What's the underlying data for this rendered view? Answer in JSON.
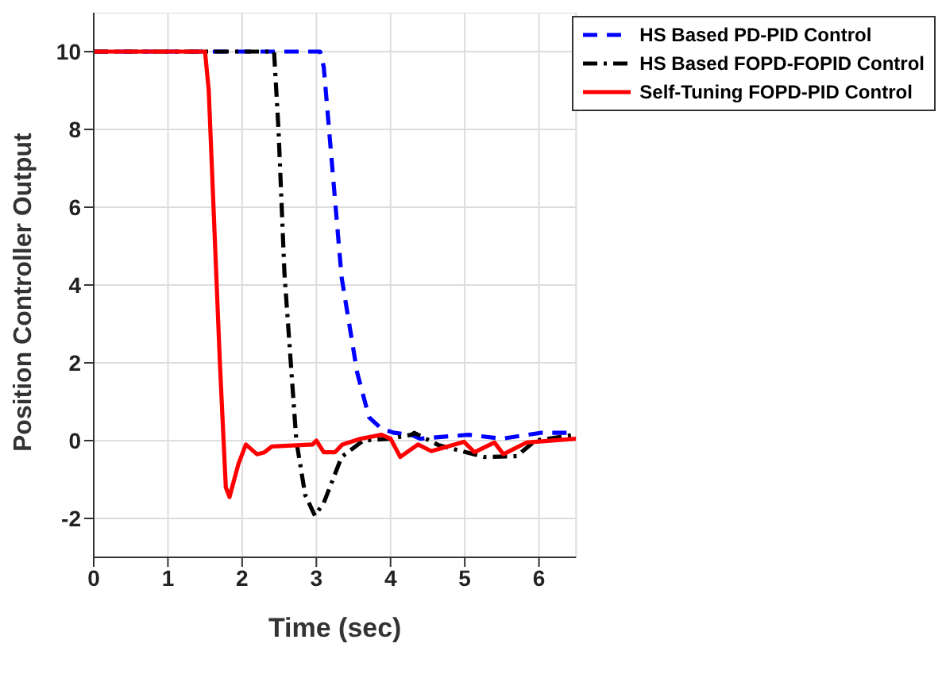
{
  "chart_data": {
    "type": "line",
    "xlabel": "Time (sec)",
    "ylabel": "Position Controller Output",
    "xlim": [
      0,
      6.5
    ],
    "xticks": [
      0,
      1,
      2,
      3,
      4,
      5,
      6
    ],
    "ylim": [
      -3,
      11
    ],
    "yticks": [
      -2,
      0,
      2,
      4,
      6,
      8,
      10
    ],
    "grid": true,
    "legend": "top right",
    "marker": "none",
    "series": [
      {
        "name": "HS Based PD-PID Control",
        "color": "#0000ff",
        "line_style": "dashed",
        "x": [
          0,
          3.05,
          3.1,
          3.34,
          3.55,
          3.71,
          3.88,
          4.05,
          4.28,
          4.4,
          5.05,
          5.5,
          6.02,
          6.5
        ],
        "values": [
          10,
          10,
          9.6,
          4.2,
          1.75,
          0.6,
          0.3,
          0.2,
          0.15,
          0.05,
          0.15,
          0.05,
          0.2,
          0.2
        ]
      },
      {
        "name": "HS Based FOPD-FOPID Control",
        "color": "#000000",
        "line_style": "dashdot",
        "x": [
          0,
          2.43,
          2.49,
          2.57,
          2.73,
          2.85,
          2.98,
          3.1,
          3.34,
          3.63,
          4.0,
          4.28,
          4.32,
          4.65,
          5.26,
          5.7,
          5.95,
          6.48,
          6.5
        ],
        "values": [
          10,
          10,
          8,
          4.3,
          0,
          -1.4,
          -1.93,
          -1.6,
          -0.42,
          0,
          0.05,
          0.15,
          0.2,
          -0.12,
          -0.42,
          -0.4,
          0,
          0.15,
          0.15
        ]
      },
      {
        "name": "Self-Tuning FOPD-PID Control",
        "color": "#ff0000",
        "line_style": "solid",
        "x": [
          0,
          1.5,
          1.55,
          1.7,
          1.78,
          1.83,
          1.95,
          2.05,
          2.2,
          2.3,
          2.4,
          2.95,
          3.0,
          3.1,
          3.25,
          3.35,
          3.6,
          3.88,
          4.0,
          4.13,
          4.37,
          4.55,
          4.99,
          5.13,
          5.4,
          5.52,
          5.83,
          6.5
        ],
        "values": [
          10,
          10,
          9,
          2,
          -1.2,
          -1.45,
          -0.6,
          -0.1,
          -0.35,
          -0.3,
          -0.15,
          -0.1,
          0,
          -0.3,
          -0.3,
          -0.1,
          0.05,
          0.15,
          0.05,
          -0.42,
          -0.1,
          -0.27,
          -0.03,
          -0.3,
          -0.05,
          -0.35,
          -0.05,
          0.05
        ]
      }
    ]
  }
}
